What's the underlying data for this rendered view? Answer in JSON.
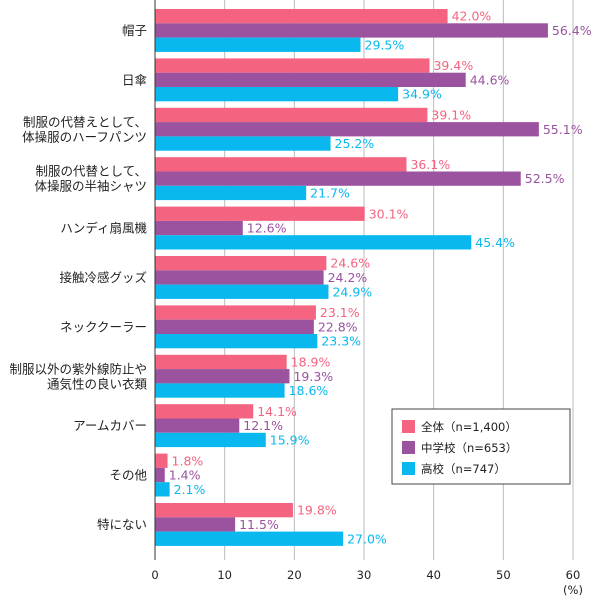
{
  "chart_data": {
    "type": "bar",
    "orientation": "horizontal",
    "categories": [
      [
        "帽子"
      ],
      [
        "日傘"
      ],
      [
        "制服の代替えとして、",
        "体操服のハーフパンツ"
      ],
      [
        "制服の代替として、",
        "体操服の半袖シャツ"
      ],
      [
        "ハンディ扇風機"
      ],
      [
        "接触冷感グッズ"
      ],
      [
        "ネッククーラー"
      ],
      [
        "制服以外の紫外線防止や",
        "通気性の良い衣類"
      ],
      [
        "アームカバー"
      ],
      [
        "その他"
      ],
      [
        "特にない"
      ]
    ],
    "series": [
      {
        "name": "全体（n=1,400）",
        "color": "#f4637f",
        "values": [
          42.0,
          39.4,
          39.1,
          36.1,
          30.1,
          24.6,
          23.1,
          18.9,
          14.1,
          1.8,
          19.8
        ],
        "labels": [
          "42.0%",
          "39.4%",
          "39.1%",
          "36.1%",
          "30.1%",
          "24.6%",
          "23.1%",
          "18.9%",
          "14.1%",
          "1.8%",
          "19.8%"
        ]
      },
      {
        "name": "中学校（n=653）",
        "color": "#9b53a0",
        "values": [
          56.4,
          44.6,
          55.1,
          52.5,
          12.6,
          24.2,
          22.8,
          19.3,
          12.1,
          1.4,
          11.5
        ],
        "labels": [
          "56.4%",
          "44.6%",
          "55.1%",
          "52.5%",
          "12.6%",
          "24.2%",
          "22.8%",
          "19.3%",
          "12.1%",
          "1.4%",
          "11.5%"
        ]
      },
      {
        "name": "高校（n=747）",
        "color": "#08b8ee",
        "values": [
          29.5,
          34.9,
          25.2,
          21.7,
          45.4,
          24.9,
          23.3,
          18.6,
          15.9,
          2.1,
          27.0
        ],
        "labels": [
          "29.5%",
          "34.9%",
          "25.2%",
          "21.7%",
          "45.4%",
          "24.9%",
          "23.3%",
          "18.6%",
          "15.9%",
          "2.1%",
          "27.0%"
        ]
      }
    ],
    "xlim": [
      0,
      60
    ],
    "xticks": [
      0,
      10,
      20,
      30,
      40,
      50,
      60
    ],
    "xtick_labels": [
      "0",
      "10",
      "20",
      "30",
      "40",
      "50",
      "60"
    ],
    "unit_label": "(%)",
    "grid": "vertical",
    "legend_position": "bottom-right"
  }
}
